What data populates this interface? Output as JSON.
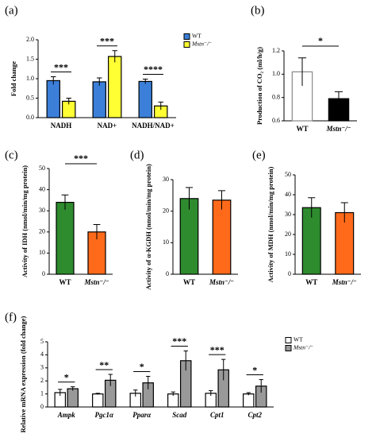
{
  "chart_data": [
    {
      "type": "bar",
      "panel_label": "(a)",
      "ylabel": "Fold change",
      "categories": [
        "NADH",
        "NAD+",
        "NADH/NAD+"
      ],
      "series": [
        {
          "name": "WT",
          "color": "#3b7fd9",
          "values": [
            0.95,
            0.92,
            0.93
          ],
          "errors": [
            0.1,
            0.1,
            0.06
          ]
        },
        {
          "name": "Mstn⁻/⁻",
          "color": "#ffff33",
          "values": [
            0.42,
            1.57,
            0.3
          ],
          "errors": [
            0.08,
            0.15,
            0.1
          ]
        }
      ],
      "annotations": [
        "***",
        "***",
        "****"
      ],
      "ylim": [
        0,
        2
      ],
      "yticks": [
        {
          "value": 0,
          "label": "0.0"
        },
        0.5,
        {
          "value": 1,
          "label": "1.0"
        },
        1.5,
        {
          "value": 2,
          "label": "2.0"
        }
      ]
    },
    {
      "type": "bar",
      "panel_label": "(b)",
      "ylabel": "Production of CO₂ (ml/h/g)",
      "categories": [
        "WT",
        "Mstn⁻/⁻"
      ],
      "values": [
        1.02,
        0.79
      ],
      "errors": [
        0.12,
        0.06
      ],
      "colors": [
        "#ffffff",
        "#000000"
      ],
      "edge_colors": [
        "#888888",
        "#000000"
      ],
      "annotations": [
        "*"
      ],
      "ylim": [
        0.6,
        1.2
      ],
      "yticks": [
        0.6,
        0.8,
        {
          "value": 1,
          "label": "1.0"
        },
        1.2
      ]
    },
    {
      "type": "bar",
      "panel_label": "(c)",
      "ylabel": "Activity of IDH (nmol/min/mg protein)",
      "categories": [
        "WT",
        "Mstn⁻/⁻"
      ],
      "values": [
        34,
        20
      ],
      "errors": [
        3.5,
        3.5
      ],
      "colors": [
        "#2e8b2e",
        "#ff6a1a"
      ],
      "edge_colors": [
        "#000000",
        "#000000"
      ],
      "annotations": [
        "***"
      ],
      "ylim": [
        0,
        50
      ],
      "yticks": [
        0,
        10,
        20,
        30,
        40,
        50
      ]
    },
    {
      "type": "bar",
      "panel_label": "(d)",
      "ylabel": "Activity of α-KGDH (nmol/min/mg protein)",
      "categories": [
        "WT",
        "Mstn⁻/⁻"
      ],
      "values": [
        24,
        23.5
      ],
      "errors": [
        3.5,
        3
      ],
      "colors": [
        "#2e8b2e",
        "#ff6a1a"
      ],
      "edge_colors": [
        "#000000",
        "#000000"
      ],
      "ylim": [
        0,
        30
      ],
      "yticks": [
        0,
        10,
        20,
        30
      ]
    },
    {
      "type": "bar",
      "panel_label": "(e)",
      "ylabel": "Activity of MDH (nmol/min/mg protein)",
      "categories": [
        "WT",
        "Mstn⁻/⁻"
      ],
      "values": [
        33.5,
        31
      ],
      "errors": [
        5,
        5
      ],
      "colors": [
        "#2e8b2e",
        "#ff6a1a"
      ],
      "edge_colors": [
        "#000000",
        "#000000"
      ],
      "ylim": [
        0,
        50
      ],
      "yticks": [
        0,
        10,
        20,
        30,
        40,
        50
      ]
    },
    {
      "type": "bar",
      "panel_label": "(f)",
      "ylabel": "Relative mRNA expression (fold change)",
      "categories": [
        "Ampk",
        "Pgc1α",
        "Pparα",
        "Scad",
        "Cpt1",
        "Cpt2"
      ],
      "series": [
        {
          "name": "WT",
          "color": "#ffffff",
          "values": [
            1.1,
            1.0,
            1.05,
            1.0,
            1.05,
            1.0
          ],
          "errors": [
            0.25,
            0.05,
            0.25,
            0.15,
            0.2,
            0.1
          ]
        },
        {
          "name": "Mstn⁻/⁻",
          "color": "#999999",
          "values": [
            1.4,
            2.05,
            1.85,
            3.55,
            2.85,
            1.6
          ],
          "errors": [
            0.15,
            0.45,
            0.5,
            0.75,
            0.8,
            0.5
          ]
        }
      ],
      "annotations": [
        "*",
        "**",
        "*",
        "***",
        "***",
        "*"
      ],
      "ylim": [
        0,
        5
      ],
      "yticks": [
        0,
        1,
        2,
        3,
        4,
        5
      ]
    }
  ]
}
